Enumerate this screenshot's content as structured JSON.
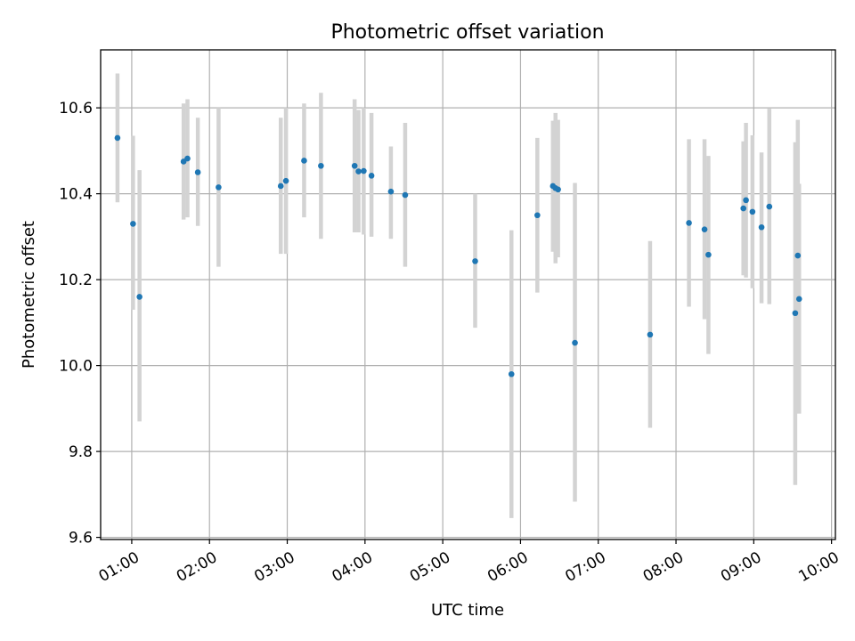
{
  "chart_data": {
    "type": "scatter",
    "title": "Photometric offset variation",
    "xlabel": "UTC time",
    "ylabel": "Photometric offset",
    "xlim": [
      "00:36",
      "10:03"
    ],
    "ylim": [
      9.595,
      10.735
    ],
    "grid": true,
    "x_ticks": [
      "01:00",
      "02:00",
      "03:00",
      "04:00",
      "05:00",
      "06:00",
      "07:00",
      "08:00",
      "09:00",
      "10:00"
    ],
    "y_ticks": [
      "9.6",
      "9.8",
      "10.0",
      "10.2",
      "10.4",
      "10.6"
    ],
    "colors": {
      "point": "#1f77b4",
      "errorbar": "#d3d3d3",
      "grid": "#b0b0b0"
    },
    "points": [
      {
        "x": "00:49",
        "y": 10.53,
        "ylow": 10.38,
        "yhigh": 10.68
      },
      {
        "x": "01:01",
        "y": 10.33,
        "ylow": 10.13,
        "yhigh": 10.535
      },
      {
        "x": "01:06",
        "y": 10.16,
        "ylow": 9.87,
        "yhigh": 10.455
      },
      {
        "x": "01:40",
        "y": 10.475,
        "ylow": 10.34,
        "yhigh": 10.61
      },
      {
        "x": "01:43",
        "y": 10.482,
        "ylow": 10.345,
        "yhigh": 10.62
      },
      {
        "x": "01:51",
        "y": 10.45,
        "ylow": 10.325,
        "yhigh": 10.577
      },
      {
        "x": "02:07",
        "y": 10.415,
        "ylow": 10.23,
        "yhigh": 10.6
      },
      {
        "x": "02:55",
        "y": 10.418,
        "ylow": 10.26,
        "yhigh": 10.577
      },
      {
        "x": "02:59",
        "y": 10.43,
        "ylow": 10.26,
        "yhigh": 10.6
      },
      {
        "x": "03:13",
        "y": 10.477,
        "ylow": 10.345,
        "yhigh": 10.61
      },
      {
        "x": "03:26",
        "y": 10.465,
        "ylow": 10.295,
        "yhigh": 10.635
      },
      {
        "x": "03:52",
        "y": 10.465,
        "ylow": 10.31,
        "yhigh": 10.62
      },
      {
        "x": "03:55",
        "y": 10.452,
        "ylow": 10.31,
        "yhigh": 10.595
      },
      {
        "x": "03:59",
        "y": 10.453,
        "ylow": 10.305,
        "yhigh": 10.6
      },
      {
        "x": "04:05",
        "y": 10.442,
        "ylow": 10.3,
        "yhigh": 10.588
      },
      {
        "x": "04:20",
        "y": 10.405,
        "ylow": 10.295,
        "yhigh": 10.51
      },
      {
        "x": "04:31",
        "y": 10.397,
        "ylow": 10.23,
        "yhigh": 10.565
      },
      {
        "x": "05:25",
        "y": 10.243,
        "ylow": 10.088,
        "yhigh": 10.4
      },
      {
        "x": "05:53",
        "y": 9.98,
        "ylow": 9.645,
        "yhigh": 10.315
      },
      {
        "x": "06:13",
        "y": 10.35,
        "ylow": 10.17,
        "yhigh": 10.53
      },
      {
        "x": "06:25",
        "y": 10.418,
        "ylow": 10.265,
        "yhigh": 10.57
      },
      {
        "x": "06:27",
        "y": 10.413,
        "ylow": 10.238,
        "yhigh": 10.588
      },
      {
        "x": "06:29",
        "y": 10.41,
        "ylow": 10.252,
        "yhigh": 10.572
      },
      {
        "x": "06:42",
        "y": 10.053,
        "ylow": 9.683,
        "yhigh": 10.425
      },
      {
        "x": "07:40",
        "y": 10.072,
        "ylow": 9.855,
        "yhigh": 10.29
      },
      {
        "x": "08:10",
        "y": 10.332,
        "ylow": 10.137,
        "yhigh": 10.527
      },
      {
        "x": "08:22",
        "y": 10.317,
        "ylow": 10.108,
        "yhigh": 10.527
      },
      {
        "x": "08:25",
        "y": 10.258,
        "ylow": 10.027,
        "yhigh": 10.488
      },
      {
        "x": "08:52",
        "y": 10.366,
        "ylow": 10.21,
        "yhigh": 10.522
      },
      {
        "x": "08:54",
        "y": 10.385,
        "ylow": 10.205,
        "yhigh": 10.565
      },
      {
        "x": "08:59",
        "y": 10.358,
        "ylow": 10.18,
        "yhigh": 10.536
      },
      {
        "x": "09:06",
        "y": 10.322,
        "ylow": 10.145,
        "yhigh": 10.496
      },
      {
        "x": "09:12",
        "y": 10.37,
        "ylow": 10.143,
        "yhigh": 10.598
      },
      {
        "x": "09:32",
        "y": 10.122,
        "ylow": 9.722,
        "yhigh": 10.52
      },
      {
        "x": "09:34",
        "y": 10.256,
        "ylow": 9.94,
        "yhigh": 10.572
      },
      {
        "x": "09:35",
        "y": 10.155,
        "ylow": 9.888,
        "yhigh": 10.423
      }
    ]
  }
}
